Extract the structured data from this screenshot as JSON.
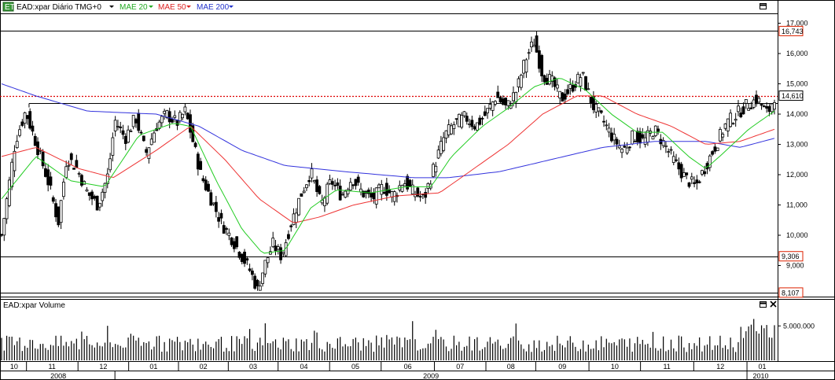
{
  "header": {
    "symbol_label": "EAD:xpar Diário TMG+0",
    "ma_labels": [
      "MAE 20",
      "MAE 50",
      "MAE 200"
    ],
    "volume_label": "EAD:xpar Volume",
    "close_icon": "close-icon",
    "maximize_icon": "maximize-icon",
    "indicator_icon": "tradingview-icon"
  },
  "colors": {
    "up_candle": "#ffffff",
    "down_candle": "#000000",
    "ma20": "#22cc22",
    "ma50": "#ee3333",
    "ma200": "#3333dd",
    "level_box": "#ffffff",
    "level_border": "#dd2200",
    "current_level": "#dd0000"
  },
  "chart_data": [
    {
      "type": "candlestick",
      "title": "EAD:xpar Diário TMG+0",
      "ylim": [
        8.0,
        17.3
      ],
      "y_ticks": [
        "9,000",
        "10,000",
        "11,000",
        "12,000",
        "13,000",
        "14,000",
        "15,000",
        "16,000",
        "17,000"
      ],
      "price_levels": [
        {
          "label": "16,743",
          "value": 16.743,
          "style": "horizontal-line"
        },
        {
          "label": "14,610",
          "value": 14.61,
          "style": "current-price-dotted"
        },
        {
          "label": "9,306",
          "value": 9.306,
          "style": "horizontal-line"
        },
        {
          "label": "8,107",
          "value": 8.107,
          "style": "horizontal-line"
        }
      ],
      "series": [
        {
          "name": "MAE 20",
          "kind": "moving-average"
        },
        {
          "name": "MAE 50",
          "kind": "moving-average"
        },
        {
          "name": "MAE 200",
          "kind": "moving-average"
        }
      ],
      "close_path": [
        {
          "x": 0,
          "y": 10.0
        },
        {
          "x": 8,
          "y": 13.1
        },
        {
          "x": 14,
          "y": 14.1
        },
        {
          "x": 22,
          "y": 12.7
        },
        {
          "x": 28,
          "y": 11.6
        },
        {
          "x": 33,
          "y": 10.4
        },
        {
          "x": 38,
          "y": 12.6
        },
        {
          "x": 44,
          "y": 12.2
        },
        {
          "x": 50,
          "y": 11.4
        },
        {
          "x": 56,
          "y": 11.0
        },
        {
          "x": 62,
          "y": 12.0
        },
        {
          "x": 66,
          "y": 13.8
        },
        {
          "x": 72,
          "y": 13.2
        },
        {
          "x": 78,
          "y": 13.9
        },
        {
          "x": 84,
          "y": 12.7
        },
        {
          "x": 90,
          "y": 13.6
        },
        {
          "x": 96,
          "y": 14.0
        },
        {
          "x": 102,
          "y": 13.7
        },
        {
          "x": 107,
          "y": 14.1
        },
        {
          "x": 111,
          "y": 13.2
        },
        {
          "x": 116,
          "y": 12.0
        },
        {
          "x": 122,
          "y": 11.2
        },
        {
          "x": 128,
          "y": 10.4
        },
        {
          "x": 134,
          "y": 9.9
        },
        {
          "x": 140,
          "y": 9.3
        },
        {
          "x": 145,
          "y": 8.8
        },
        {
          "x": 149,
          "y": 8.2
        },
        {
          "x": 153,
          "y": 9.0
        },
        {
          "x": 158,
          "y": 9.7
        },
        {
          "x": 163,
          "y": 9.3
        },
        {
          "x": 168,
          "y": 10.3
        },
        {
          "x": 174,
          "y": 11.3
        },
        {
          "x": 180,
          "y": 12.1
        },
        {
          "x": 186,
          "y": 11.0
        },
        {
          "x": 192,
          "y": 11.8
        },
        {
          "x": 198,
          "y": 11.3
        },
        {
          "x": 204,
          "y": 11.9
        },
        {
          "x": 210,
          "y": 11.4
        },
        {
          "x": 216,
          "y": 11.2
        },
        {
          "x": 222,
          "y": 11.6
        },
        {
          "x": 228,
          "y": 11.3
        },
        {
          "x": 234,
          "y": 11.8
        },
        {
          "x": 240,
          "y": 11.4
        },
        {
          "x": 246,
          "y": 11.2
        },
        {
          "x": 252,
          "y": 12.3
        },
        {
          "x": 258,
          "y": 13.3
        },
        {
          "x": 264,
          "y": 13.7
        },
        {
          "x": 270,
          "y": 13.9
        },
        {
          "x": 276,
          "y": 13.6
        },
        {
          "x": 282,
          "y": 14.0
        },
        {
          "x": 288,
          "y": 14.6
        },
        {
          "x": 294,
          "y": 14.2
        },
        {
          "x": 300,
          "y": 14.8
        },
        {
          "x": 305,
          "y": 15.8
        },
        {
          "x": 310,
          "y": 16.4
        },
        {
          "x": 315,
          "y": 15.3
        },
        {
          "x": 320,
          "y": 15.1
        },
        {
          "x": 326,
          "y": 14.5
        },
        {
          "x": 332,
          "y": 14.9
        },
        {
          "x": 338,
          "y": 15.3
        },
        {
          "x": 344,
          "y": 14.3
        },
        {
          "x": 350,
          "y": 13.8
        },
        {
          "x": 356,
          "y": 13.2
        },
        {
          "x": 362,
          "y": 12.8
        },
        {
          "x": 368,
          "y": 13.3
        },
        {
          "x": 374,
          "y": 13.1
        },
        {
          "x": 380,
          "y": 13.5
        },
        {
          "x": 386,
          "y": 13.0
        },
        {
          "x": 392,
          "y": 12.4
        },
        {
          "x": 398,
          "y": 11.9
        },
        {
          "x": 404,
          "y": 11.6
        },
        {
          "x": 410,
          "y": 12.3
        },
        {
          "x": 416,
          "y": 13.0
        },
        {
          "x": 422,
          "y": 13.7
        },
        {
          "x": 428,
          "y": 14.0
        },
        {
          "x": 434,
          "y": 14.3
        },
        {
          "x": 440,
          "y": 14.5
        },
        {
          "x": 446,
          "y": 14.0
        },
        {
          "x": 450,
          "y": 14.6
        }
      ],
      "ma20_path": [
        {
          "x": 0,
          "y": 11.2
        },
        {
          "x": 20,
          "y": 12.6
        },
        {
          "x": 40,
          "y": 11.8
        },
        {
          "x": 60,
          "y": 11.6
        },
        {
          "x": 80,
          "y": 13.3
        },
        {
          "x": 100,
          "y": 13.7
        },
        {
          "x": 110,
          "y": 13.6
        },
        {
          "x": 125,
          "y": 11.8
        },
        {
          "x": 140,
          "y": 10.2
        },
        {
          "x": 152,
          "y": 9.4
        },
        {
          "x": 165,
          "y": 9.5
        },
        {
          "x": 180,
          "y": 10.9
        },
        {
          "x": 195,
          "y": 11.5
        },
        {
          "x": 215,
          "y": 11.4
        },
        {
          "x": 235,
          "y": 11.6
        },
        {
          "x": 250,
          "y": 11.6
        },
        {
          "x": 262,
          "y": 12.6
        },
        {
          "x": 280,
          "y": 13.6
        },
        {
          "x": 295,
          "y": 14.2
        },
        {
          "x": 310,
          "y": 14.9
        },
        {
          "x": 325,
          "y": 15.2
        },
        {
          "x": 340,
          "y": 14.8
        },
        {
          "x": 355,
          "y": 14.0
        },
        {
          "x": 370,
          "y": 13.4
        },
        {
          "x": 385,
          "y": 13.4
        },
        {
          "x": 400,
          "y": 12.6
        },
        {
          "x": 410,
          "y": 12.2
        },
        {
          "x": 420,
          "y": 12.7
        },
        {
          "x": 435,
          "y": 13.5
        },
        {
          "x": 450,
          "y": 14.1
        }
      ],
      "ma50_path": [
        {
          "x": 0,
          "y": 12.6
        },
        {
          "x": 20,
          "y": 12.9
        },
        {
          "x": 45,
          "y": 12.2
        },
        {
          "x": 65,
          "y": 11.9
        },
        {
          "x": 90,
          "y": 12.8
        },
        {
          "x": 110,
          "y": 13.6
        },
        {
          "x": 130,
          "y": 12.5
        },
        {
          "x": 150,
          "y": 11.2
        },
        {
          "x": 170,
          "y": 10.4
        },
        {
          "x": 185,
          "y": 10.6
        },
        {
          "x": 205,
          "y": 11.0
        },
        {
          "x": 230,
          "y": 11.3
        },
        {
          "x": 255,
          "y": 11.4
        },
        {
          "x": 275,
          "y": 12.2
        },
        {
          "x": 295,
          "y": 13.0
        },
        {
          "x": 315,
          "y": 14.0
        },
        {
          "x": 335,
          "y": 14.6
        },
        {
          "x": 350,
          "y": 14.6
        },
        {
          "x": 370,
          "y": 14.0
        },
        {
          "x": 390,
          "y": 13.6
        },
        {
          "x": 410,
          "y": 13.0
        },
        {
          "x": 430,
          "y": 13.1
        },
        {
          "x": 450,
          "y": 13.5
        }
      ],
      "ma200_path": [
        {
          "x": 0,
          "y": 15.0
        },
        {
          "x": 20,
          "y": 14.6
        },
        {
          "x": 50,
          "y": 14.1
        },
        {
          "x": 90,
          "y": 14.0
        },
        {
          "x": 115,
          "y": 13.6
        },
        {
          "x": 140,
          "y": 12.8
        },
        {
          "x": 165,
          "y": 12.3
        },
        {
          "x": 200,
          "y": 12.1
        },
        {
          "x": 240,
          "y": 11.9
        },
        {
          "x": 260,
          "y": 11.9
        },
        {
          "x": 290,
          "y": 12.1
        },
        {
          "x": 320,
          "y": 12.5
        },
        {
          "x": 350,
          "y": 12.9
        },
        {
          "x": 380,
          "y": 13.1
        },
        {
          "x": 410,
          "y": 13.1
        },
        {
          "x": 430,
          "y": 12.9
        },
        {
          "x": 450,
          "y": 13.2
        }
      ]
    },
    {
      "type": "bar",
      "title": "EAD:xpar Volume",
      "y_ticks": [
        "5.000.000"
      ],
      "ylim": [
        0,
        7200000
      ],
      "volume_seed": 7
    },
    {
      "type": "time-axis",
      "months": [
        "10",
        "11",
        "12",
        "01",
        "02",
        "03",
        "04",
        "05",
        "06",
        "07",
        "08",
        "09",
        "10",
        "11",
        "12",
        "01"
      ],
      "years": [
        "2008",
        "2009",
        "2010"
      ]
    }
  ]
}
